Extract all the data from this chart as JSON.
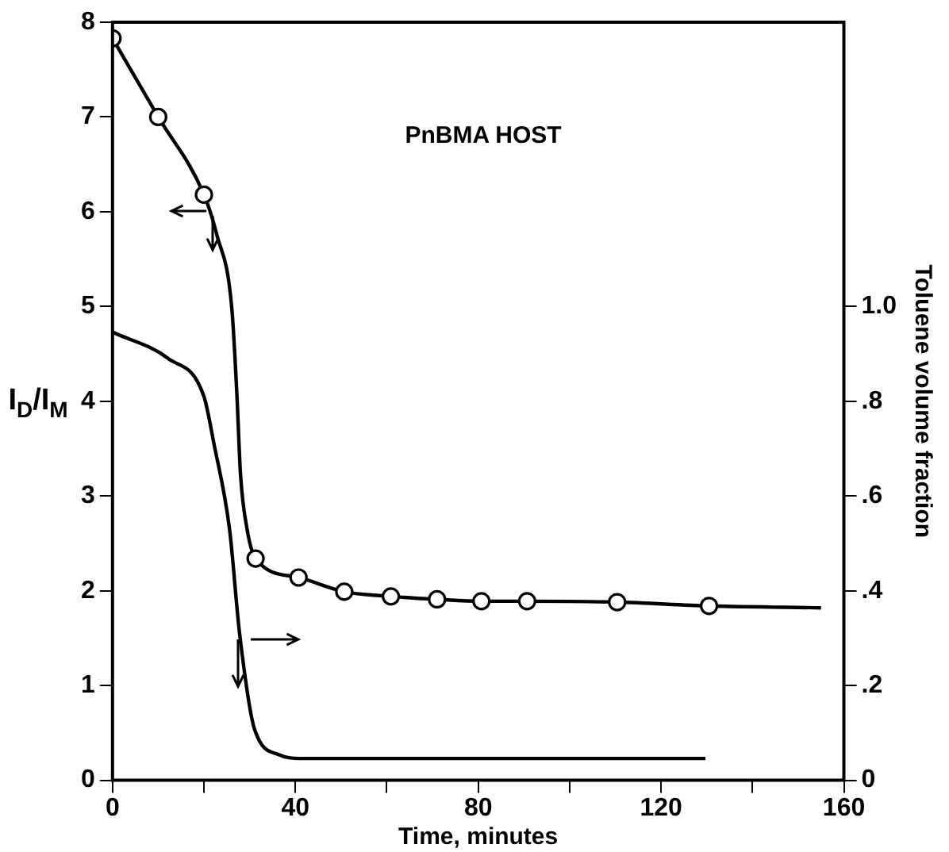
{
  "chart_data": {
    "type": "line",
    "xlabel": "Time, minutes",
    "ylabel": "I$_{D}$/I$_{M}$",
    "y2label": "Toluene volume fraction",
    "annotations": [
      "PnBMA HOST"
    ],
    "series": [
      {
        "color": "#000000",
        "marker": "none",
        "x": [
          0,
          10,
          20,
          22.8,
          26.1,
          27.2,
          28,
          29.4,
          31.3,
          40.7,
          50.7,
          60.9,
          71,
          80.7,
          90.7,
          110.4,
          130.5,
          155
        ],
        "values": [
          7.83,
          7.0,
          6.18,
          5.76,
          4.98,
          4.08,
          3.23,
          2.66,
          2.34,
          2.14,
          1.99,
          1.94,
          1.91,
          1.89,
          1.89,
          1.88,
          1.84,
          1.82
        ]
      },
      {
        "type": "scatter",
        "color": "#000000",
        "marker": "circle",
        "x": [
          0,
          10,
          20,
          31.3,
          40.7,
          50.7,
          60.9,
          71,
          80.7,
          90.7,
          110.4,
          130.5
        ],
        "values": [
          7.83,
          7.0,
          6.18,
          2.34,
          2.14,
          1.99,
          1.94,
          1.91,
          1.89,
          1.89,
          1.88,
          1.84
        ]
      },
      {
        "axis": "y2",
        "color": "#000000",
        "marker": "none",
        "x": [
          0,
          12.2,
          20,
          22.2,
          25.6,
          27.8,
          31.1,
          36.7,
          41,
          129.7
        ],
        "values": [
          0.946,
          0.89,
          0.81,
          0.71,
          0.53,
          0.31,
          0.107,
          0.053,
          0.046,
          0.046
        ]
      }
    ],
    "xlim": [
      0,
      160
    ],
    "xticks": [
      0,
      {
        "value": 20,
        "label": null
      },
      40,
      {
        "value": 60,
        "label": null
      },
      80,
      {
        "value": 100,
        "label": null
      },
      120,
      {
        "value": 140,
        "label": null
      },
      160
    ],
    "ylim": [
      0,
      8
    ],
    "yticks": [
      0,
      1,
      2,
      3,
      4,
      5,
      6,
      7,
      8
    ],
    "y2lim": [
      0,
      1.6
    ],
    "y2ticks": [
      0,
      {
        "value": 0.2,
        "label": ".2"
      },
      {
        "value": 0.4,
        "label": ".4"
      },
      {
        "value": 0.6,
        "label": ".6"
      },
      {
        "value": 0.8,
        "label": ".8"
      },
      {
        "value": 1.0,
        "label": "1.0"
      }
    ],
    "grid": false,
    "legend": false
  }
}
